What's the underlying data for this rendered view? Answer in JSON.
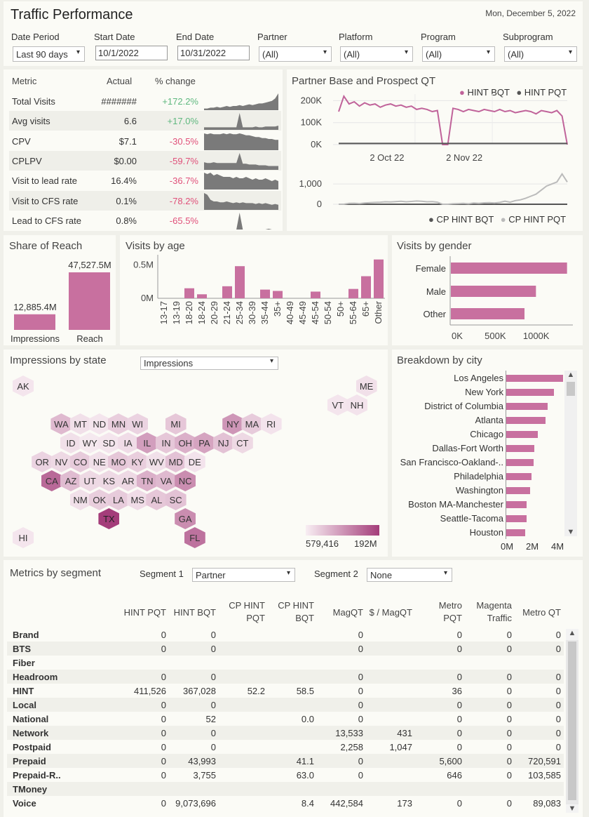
{
  "header": {
    "title": "Traffic Performance",
    "date": "Mon, December 5, 2022"
  },
  "filters": {
    "date_period": {
      "label": "Date Period",
      "value": "Last 90 days"
    },
    "start_date": {
      "label": "Start Date",
      "value": "10/1/2022"
    },
    "end_date": {
      "label": "End Date",
      "value": "10/31/2022"
    },
    "partner": {
      "label": "Partner",
      "value": "(All)"
    },
    "platform": {
      "label": "Platform",
      "value": "(All)"
    },
    "program": {
      "label": "Program",
      "value": "(All)"
    },
    "subprogram": {
      "label": "Subprogram",
      "value": "(All)"
    }
  },
  "metrics": {
    "headers": [
      "Metric",
      "Actual",
      "% change"
    ],
    "rows": [
      {
        "name": "Total Visits",
        "actual": "#######",
        "change": "+172.2%",
        "sign": "pos",
        "spark": [
          2,
          2,
          3,
          3,
          4,
          3,
          4,
          5,
          4,
          5,
          5,
          6,
          5,
          6,
          7,
          6,
          7,
          8,
          8,
          9,
          10,
          11,
          14,
          20
        ]
      },
      {
        "name": "Avg visits",
        "actual": "6.6",
        "change": "+17.0%",
        "sign": "pos",
        "spark": [
          3,
          3,
          3,
          3,
          3,
          3,
          3,
          3,
          3,
          3,
          3,
          20,
          3,
          3,
          3,
          3,
          4,
          3,
          3,
          4,
          4,
          4,
          4,
          5
        ]
      },
      {
        "name": "CPV",
        "actual": "$7.1",
        "change": "-30.5%",
        "sign": "neg",
        "spark": [
          18,
          17,
          18,
          17,
          17,
          17,
          18,
          17,
          18,
          17,
          17,
          18,
          17,
          16,
          16,
          15,
          14,
          14,
          13,
          13,
          12,
          12,
          11,
          11
        ]
      },
      {
        "name": "CPLPV",
        "actual": "$0.00",
        "change": "-59.7%",
        "sign": "neg",
        "spark": [
          10,
          9,
          9,
          10,
          9,
          9,
          9,
          9,
          9,
          9,
          9,
          22,
          8,
          8,
          7,
          7,
          7,
          6,
          6,
          6,
          5,
          5,
          5,
          5
        ]
      },
      {
        "name": "Visit to lead rate",
        "actual": "16.4%",
        "change": "-36.7%",
        "sign": "neg",
        "spark": [
          12,
          11,
          12,
          10,
          11,
          10,
          9,
          9,
          9,
          8,
          9,
          8,
          8,
          9,
          8,
          7,
          8,
          7,
          7,
          8,
          7,
          6,
          7,
          6
        ]
      },
      {
        "name": "Visit to CFS rate",
        "actual": "0.1%",
        "change": "-78.2%",
        "sign": "neg",
        "spark": [
          20,
          18,
          12,
          10,
          10,
          9,
          9,
          10,
          9,
          8,
          9,
          8,
          9,
          8,
          8,
          8,
          7,
          8,
          7,
          8,
          7,
          6,
          7,
          6
        ]
      },
      {
        "name": "Lead to CFS rate",
        "actual": "0.8%",
        "change": "-65.5%",
        "sign": "neg",
        "spark": [
          0,
          0,
          0,
          0,
          0,
          0,
          0,
          0,
          0,
          0,
          0,
          22,
          0,
          0,
          0,
          0,
          0,
          0,
          0,
          0,
          1,
          0,
          0,
          0
        ]
      }
    ]
  },
  "partner_chart": {
    "title": "Partner Base and Prospect QT",
    "legend_top": [
      "HINT BQT",
      "HINT PQT"
    ],
    "legend_bottom": [
      "CP HINT BQT",
      "CP HINT PQT"
    ],
    "colors": {
      "bqt": "#c0639a",
      "pqt": "#555555",
      "cp_bqt": "#555555",
      "cp_pqt": "#bbbbbb"
    },
    "yticks_top": [
      "200K",
      "100K",
      "0K"
    ],
    "yticks_bottom": [
      "1,000",
      "0"
    ],
    "xticks": [
      "2 Oct 22",
      "2 Nov 22"
    ]
  },
  "chart_data": [
    {
      "type": "line",
      "title": "Partner Base and Prospect QT",
      "x_range": [
        "2022-09-07",
        "2022-12-04"
      ],
      "ylim": [
        0,
        230000
      ],
      "series": [
        {
          "name": "HINT BQT",
          "values": [
            150000,
            220000,
            185000,
            195000,
            175000,
            190000,
            180000,
            185000,
            170000,
            180000,
            185000,
            175000,
            180000,
            170000,
            175000,
            160000,
            165000,
            160000,
            150000,
            155000,
            0,
            0,
            165000,
            160000,
            150000,
            160000,
            155000,
            150000,
            160000,
            155000,
            150000,
            160000,
            150000,
            155000,
            145000,
            150000,
            155000,
            150000,
            140000,
            155000,
            150000,
            145000,
            155000,
            130000,
            0
          ]
        },
        {
          "name": "HINT PQT",
          "values": [
            5000,
            5000,
            5000,
            5000,
            5000,
            5000,
            5000,
            5000,
            5000,
            5000,
            5000,
            5000,
            5000,
            5000,
            5000,
            5000,
            5000,
            5000,
            5000,
            5000,
            5000,
            5000,
            5000,
            5000,
            5000,
            5000,
            5000,
            5000,
            5000,
            5000,
            5000,
            5000,
            5000,
            5000,
            5000,
            5000,
            5000,
            5000,
            5000,
            5000,
            5000,
            5000,
            5000,
            5000,
            5000
          ]
        }
      ]
    },
    {
      "type": "line",
      "title": "",
      "ylim": [
        0,
        1700
      ],
      "series": [
        {
          "name": "CP HINT BQT",
          "values": [
            0,
            0,
            0,
            0,
            0,
            0,
            0,
            0,
            0,
            0,
            0,
            0,
            0,
            0,
            0,
            0,
            0,
            0,
            0,
            0,
            0,
            0,
            0,
            0,
            0,
            0,
            0,
            0,
            0,
            0,
            0,
            0,
            0,
            0,
            0,
            0,
            0,
            0,
            0,
            0,
            0,
            0,
            0,
            0,
            0
          ]
        },
        {
          "name": "CP HINT PQT",
          "values": [
            0,
            0,
            40,
            50,
            30,
            60,
            80,
            90,
            100,
            120,
            110,
            130,
            150,
            120,
            140,
            160,
            150,
            120,
            130,
            100,
            0,
            0,
            20,
            30,
            40,
            20,
            60,
            40,
            70,
            80,
            60,
            90,
            150,
            100,
            180,
            220,
            300,
            400,
            500,
            700,
            900,
            1000,
            1100,
            1500,
            1100
          ]
        }
      ]
    },
    {
      "type": "bar",
      "title": "Share of Reach",
      "categories": [
        "Impressions",
        "Reach"
      ],
      "values": [
        12885.4,
        47527.5
      ],
      "labels": [
        "12,885.4M",
        "47,527.5M"
      ]
    },
    {
      "type": "bar",
      "title": "Visits by age",
      "categories": [
        "13-17",
        "13-19",
        "18-20",
        "18-24",
        "20-29",
        "21-24",
        "25-34",
        "30-39",
        "35-44",
        "35+",
        "40-49",
        "45-49",
        "45-54",
        "50-54",
        "50+",
        "55-64",
        "65+",
        "Other"
      ],
      "values": [
        0,
        0,
        150000,
        60000,
        0,
        180000,
        480000,
        0,
        130000,
        110000,
        0,
        0,
        100000,
        0,
        0,
        140000,
        330000,
        580000
      ],
      "yticks": [
        "0.5M",
        "0M"
      ],
      "ylim": [
        0,
        650000
      ]
    },
    {
      "type": "bar",
      "title": "Visits by gender",
      "categories": [
        "Female",
        "Male",
        "Other"
      ],
      "values": [
        1420000,
        1040000,
        900000
      ],
      "xticks": [
        "0K",
        "500K",
        "1000K"
      ],
      "xlim": [
        0,
        1500000
      ]
    },
    {
      "type": "bar",
      "title": "Breakdown by city",
      "categories": [
        "Los Angeles",
        "New York",
        "District of Columbia",
        "Atlanta",
        "Chicago",
        "Dallas-Fort Worth",
        "San Francisco-Oakland-..",
        "Philadelphia",
        "Washington",
        "Boston MA-Manchester",
        "Seattle-Tacoma",
        "Houston"
      ],
      "values": [
        4.5,
        3.8,
        3.3,
        3.1,
        2.5,
        2.2,
        2.15,
        2.0,
        1.9,
        1.6,
        1.6,
        1.5
      ],
      "xticks": [
        "0M",
        "2M",
        "4M"
      ],
      "xlim": [
        0,
        5
      ]
    }
  ],
  "share_reach": {
    "title": "Share of Reach"
  },
  "age": {
    "title": "Visits by age"
  },
  "gender": {
    "title": "Visits by gender"
  },
  "states": {
    "title": "Impressions by state",
    "selector": "Impressions",
    "legend_min": "579,416",
    "legend_max": "192M",
    "hexes": [
      {
        "s": "AK",
        "r": 0,
        "c": 0,
        "v": 0.05
      },
      {
        "s": "ME",
        "r": 0,
        "c": 18,
        "v": 0.08
      },
      {
        "s": "VT",
        "r": 1,
        "c": 16,
        "v": 0.05
      },
      {
        "s": "NH",
        "r": 1,
        "c": 17,
        "v": 0.06
      },
      {
        "s": "WA",
        "r": 2,
        "c": 2,
        "v": 0.3
      },
      {
        "s": "MT",
        "r": 2,
        "c": 3,
        "v": 0.08
      },
      {
        "s": "ND",
        "r": 2,
        "c": 4,
        "v": 0.05
      },
      {
        "s": "MN",
        "r": 2,
        "c": 5,
        "v": 0.18
      },
      {
        "s": "WI",
        "r": 2,
        "c": 6,
        "v": 0.15
      },
      {
        "s": "MI",
        "r": 2,
        "c": 8,
        "v": 0.22
      },
      {
        "s": "NY",
        "r": 2,
        "c": 11,
        "v": 0.5
      },
      {
        "s": "MA",
        "r": 2,
        "c": 12,
        "v": 0.2
      },
      {
        "s": "RI",
        "r": 2,
        "c": 13,
        "v": 0.06
      },
      {
        "s": "ID",
        "r": 3,
        "c": 2,
        "v": 0.08
      },
      {
        "s": "WY",
        "r": 3,
        "c": 3,
        "v": 0.03
      },
      {
        "s": "SD",
        "r": 3,
        "c": 4,
        "v": 0.05
      },
      {
        "s": "IA",
        "r": 3,
        "c": 5,
        "v": 0.1
      },
      {
        "s": "IL",
        "r": 3,
        "c": 6,
        "v": 0.45
      },
      {
        "s": "IN",
        "r": 3,
        "c": 7,
        "v": 0.22
      },
      {
        "s": "OH",
        "r": 3,
        "c": 8,
        "v": 0.35
      },
      {
        "s": "PA",
        "r": 3,
        "c": 9,
        "v": 0.42
      },
      {
        "s": "NJ",
        "r": 3,
        "c": 10,
        "v": 0.25
      },
      {
        "s": "CT",
        "r": 3,
        "c": 11,
        "v": 0.12
      },
      {
        "s": "OR",
        "r": 4,
        "c": 1,
        "v": 0.15
      },
      {
        "s": "NV",
        "r": 4,
        "c": 2,
        "v": 0.12
      },
      {
        "s": "CO",
        "r": 4,
        "c": 3,
        "v": 0.2
      },
      {
        "s": "NE",
        "r": 4,
        "c": 4,
        "v": 0.08
      },
      {
        "s": "MO",
        "r": 4,
        "c": 5,
        "v": 0.22
      },
      {
        "s": "KY",
        "r": 4,
        "c": 6,
        "v": 0.18
      },
      {
        "s": "WV",
        "r": 4,
        "c": 7,
        "v": 0.08
      },
      {
        "s": "MD",
        "r": 4,
        "c": 8,
        "v": 0.25
      },
      {
        "s": "DE",
        "r": 4,
        "c": 9,
        "v": 0.06
      },
      {
        "s": "CA",
        "r": 5,
        "c": 1,
        "v": 0.75
      },
      {
        "s": "AZ",
        "r": 5,
        "c": 2,
        "v": 0.28
      },
      {
        "s": "UT",
        "r": 5,
        "c": 3,
        "v": 0.12
      },
      {
        "s": "KS",
        "r": 5,
        "c": 4,
        "v": 0.12
      },
      {
        "s": "AR",
        "r": 5,
        "c": 5,
        "v": 0.12
      },
      {
        "s": "TN",
        "r": 5,
        "c": 6,
        "v": 0.35
      },
      {
        "s": "VA",
        "r": 5,
        "c": 7,
        "v": 0.3
      },
      {
        "s": "NC",
        "r": 5,
        "c": 8,
        "v": 0.55
      },
      {
        "s": "NM",
        "r": 6,
        "c": 3,
        "v": 0.08
      },
      {
        "s": "OK",
        "r": 6,
        "c": 4,
        "v": 0.18
      },
      {
        "s": "LA",
        "r": 6,
        "c": 5,
        "v": 0.2
      },
      {
        "s": "MS",
        "r": 6,
        "c": 6,
        "v": 0.1
      },
      {
        "s": "AL",
        "r": 6,
        "c": 7,
        "v": 0.22
      },
      {
        "s": "SC",
        "r": 6,
        "c": 8,
        "v": 0.25
      },
      {
        "s": "TX",
        "r": 7,
        "c": 4,
        "v": 1.0
      },
      {
        "s": "GA",
        "r": 7,
        "c": 8,
        "v": 0.55
      },
      {
        "s": "HI",
        "r": 8,
        "c": 0,
        "v": 0.05
      },
      {
        "s": "FL",
        "r": 8,
        "c": 9,
        "v": 0.7
      }
    ]
  },
  "city": {
    "title": "Breakdown by city"
  },
  "segment": {
    "title": "Metrics by segment",
    "seg1_label": "Segment 1",
    "seg1": "Partner",
    "seg2_label": "Segment  2",
    "seg2": "None",
    "headers": [
      "HINT PQT",
      "HINT BQT",
      "CP HINT\nPQT",
      "CP HINT\nBQT",
      "MagQT",
      "$ / MagQT",
      "Metro\nPQT",
      "Magenta\nTraffic",
      "Metro QT"
    ],
    "rows": [
      {
        "name": "Brand",
        "cells": [
          "0",
          "0",
          "",
          "",
          "0",
          "",
          "0",
          "0",
          "0"
        ]
      },
      {
        "name": "BTS",
        "cells": [
          "0",
          "0",
          "",
          "",
          "0",
          "",
          "0",
          "0",
          "0"
        ]
      },
      {
        "name": "Fiber",
        "cells": [
          "",
          "",
          "",
          "",
          "",
          "",
          "",
          "",
          ""
        ]
      },
      {
        "name": "Headroom",
        "cells": [
          "0",
          "0",
          "",
          "",
          "0",
          "",
          "0",
          "0",
          "0"
        ]
      },
      {
        "name": "HINT",
        "cells": [
          "411,526",
          "367,028",
          "52.2",
          "58.5",
          "0",
          "",
          "36",
          "0",
          "0"
        ]
      },
      {
        "name": "Local",
        "cells": [
          "0",
          "0",
          "",
          "",
          "0",
          "",
          "0",
          "0",
          "0"
        ]
      },
      {
        "name": "National",
        "cells": [
          "0",
          "52",
          "",
          "0.0",
          "0",
          "",
          "0",
          "0",
          "0"
        ]
      },
      {
        "name": "Network",
        "cells": [
          "0",
          "0",
          "",
          "",
          "13,533",
          "431",
          "0",
          "0",
          "0"
        ]
      },
      {
        "name": "Postpaid",
        "cells": [
          "0",
          "0",
          "",
          "",
          "2,258",
          "1,047",
          "0",
          "0",
          "0"
        ]
      },
      {
        "name": "Prepaid",
        "cells": [
          "0",
          "43,993",
          "",
          "41.1",
          "0",
          "",
          "5,600",
          "0",
          "720,591"
        ]
      },
      {
        "name": "Prepaid-R..",
        "cells": [
          "0",
          "3,755",
          "",
          "63.0",
          "0",
          "",
          "646",
          "0",
          "103,585"
        ]
      },
      {
        "name": "TMoney",
        "cells": [
          "",
          "",
          "",
          "",
          "",
          "",
          "",
          "",
          ""
        ]
      },
      {
        "name": "Voice",
        "cells": [
          "0",
          "9,073,696",
          "",
          "8.4",
          "442,584",
          "173",
          "0",
          "0",
          "89,083"
        ]
      }
    ]
  }
}
